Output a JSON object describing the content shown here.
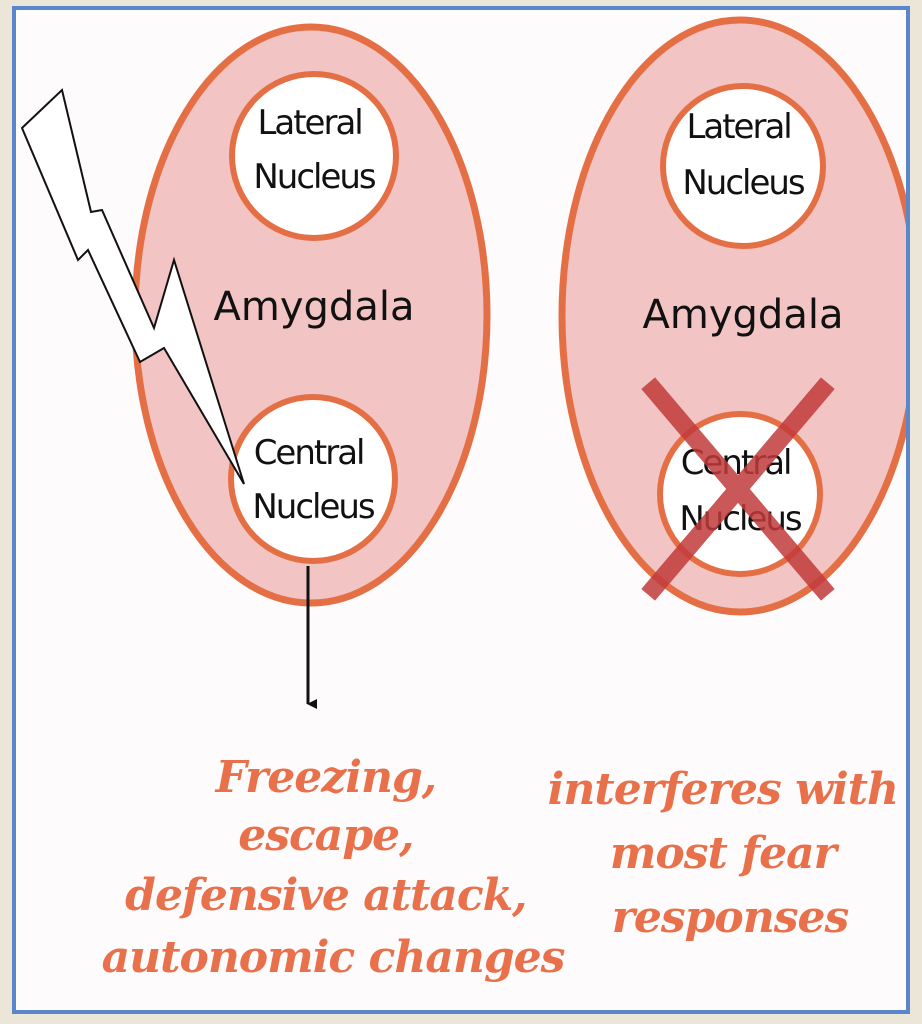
{
  "colors": {
    "frame_border": "#5b86c9",
    "amygdala_fill": "#f2c4c4",
    "amygdala_stroke": "#e56f45",
    "outcome_text": "#e8704b",
    "lesion_cross": "#c23b3b"
  },
  "left": {
    "lateral_nucleus": [
      "Lateral",
      "Nucleus"
    ],
    "amygdala": "Amygdala",
    "central_nucleus": [
      "Central",
      "Nucleus"
    ],
    "outcome_lines": [
      "Freezing,",
      "escape,",
      "defensive attack,",
      "autonomic changes"
    ]
  },
  "right": {
    "lateral_nucleus": [
      "Lateral",
      "Nucleus"
    ],
    "amygdala": "Amygdala",
    "central_nucleus": [
      "Central",
      "Nucleus"
    ],
    "outcome_lines": [
      "interferes with",
      "most fear",
      "responses"
    ]
  }
}
